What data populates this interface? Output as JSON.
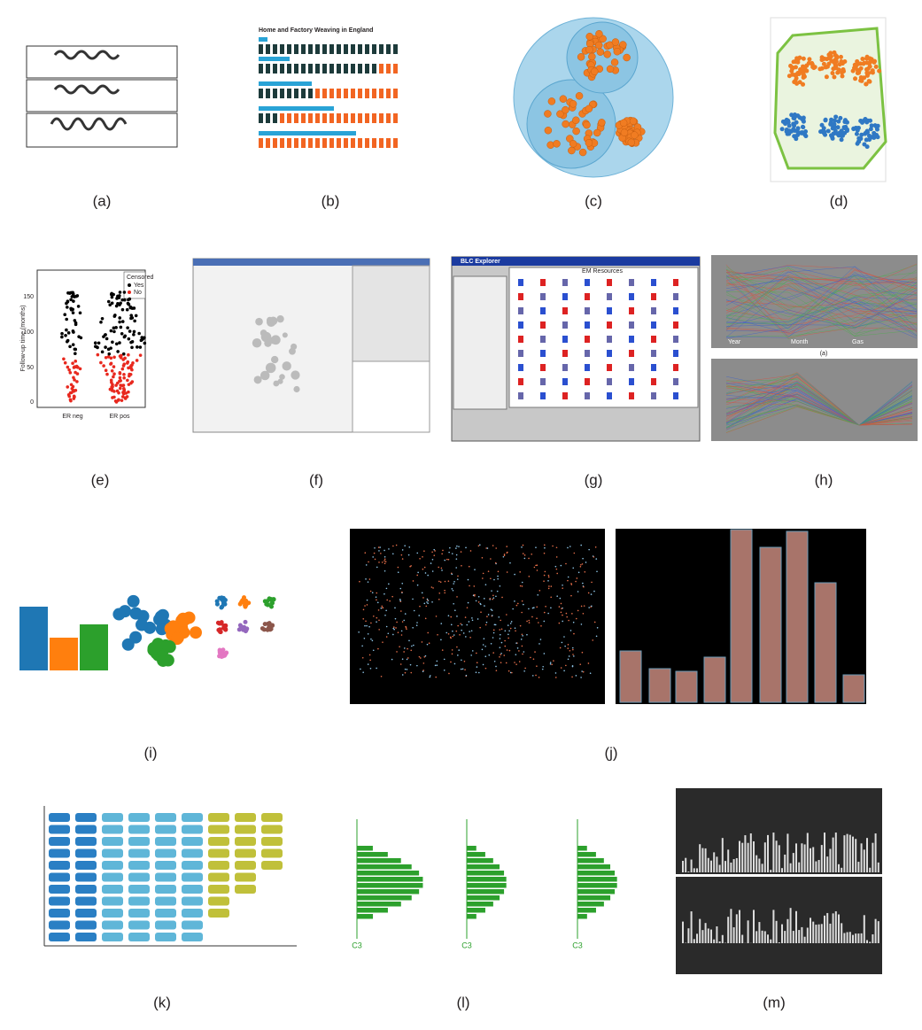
{
  "panels": [
    {
      "label": "(a)"
    },
    {
      "label": "(b)",
      "texts": [
        "Home and Factory Weaving in England"
      ]
    },
    {
      "label": "(c)"
    },
    {
      "label": "(d)"
    },
    {
      "label": "(e)",
      "texts": [
        "Censored",
        "Yes",
        "No",
        "Follow-up time (months)",
        "ER neg",
        "ER pos",
        "0",
        "50",
        "100",
        "150"
      ]
    },
    {
      "label": "(f)"
    },
    {
      "label": "(g)",
      "texts": [
        "BLC Explorer",
        "EM Resources"
      ]
    },
    {
      "label": "(h)",
      "texts": [
        "Year",
        "Month",
        "Gas",
        "(a)"
      ]
    },
    {
      "label": "(i)"
    },
    {
      "label": "(j)"
    },
    {
      "label": "(k)"
    },
    {
      "label": "(l)",
      "texts": [
        "C3",
        "C3",
        "C3"
      ]
    },
    {
      "label": "(m)"
    }
  ]
}
